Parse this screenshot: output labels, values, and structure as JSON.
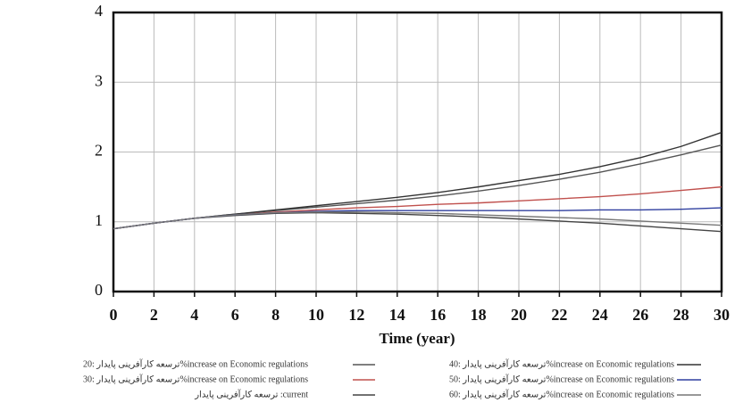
{
  "chart_data": {
    "type": "line",
    "x_label": "Time (year)",
    "x": [
      0,
      2,
      4,
      6,
      8,
      10,
      12,
      14,
      16,
      18,
      20,
      22,
      24,
      26,
      28,
      30
    ],
    "xlim": [
      0,
      30
    ],
    "xticks": [
      0,
      2,
      4,
      6,
      8,
      10,
      12,
      14,
      16,
      18,
      20,
      22,
      24,
      26,
      28,
      30
    ],
    "ylim": [
      0,
      4
    ],
    "yticks": [
      0,
      1,
      2,
      3,
      4
    ],
    "grid": true,
    "series": [
      {
        "name": "ترسعه کارآفرینی پایدار :20%increase on Economic regulations",
        "color": "#555555",
        "values": [
          0.9,
          0.98,
          1.05,
          1.11,
          1.16,
          1.21,
          1.26,
          1.31,
          1.37,
          1.44,
          1.52,
          1.61,
          1.71,
          1.83,
          1.96,
          2.1
        ]
      },
      {
        "name": "ترسعه کارآفرینی پایدار :30%increase on Economic regulations",
        "color": "#c0504d",
        "values": [
          0.9,
          0.98,
          1.05,
          1.1,
          1.14,
          1.17,
          1.2,
          1.22,
          1.25,
          1.27,
          1.3,
          1.33,
          1.36,
          1.4,
          1.45,
          1.5
        ]
      },
      {
        "name": "ترسعه کارآفرینی پایدار :current",
        "color": "#444444",
        "values": [
          0.9,
          0.98,
          1.05,
          1.09,
          1.12,
          1.13,
          1.12,
          1.11,
          1.09,
          1.07,
          1.04,
          1.01,
          0.98,
          0.94,
          0.9,
          0.86
        ]
      },
      {
        "name": "ترسعه کارآفرینی پایدار :40%increase on Economic regulations",
        "color": "#333333",
        "values": [
          0.9,
          0.98,
          1.05,
          1.11,
          1.17,
          1.23,
          1.29,
          1.35,
          1.42,
          1.5,
          1.59,
          1.68,
          1.79,
          1.92,
          2.08,
          2.28
        ]
      },
      {
        "name": "ترسعه کارآفرینی پایدار :50%increase on Economic regulations",
        "color": "#2f3f9f",
        "values": [
          0.9,
          0.98,
          1.05,
          1.1,
          1.13,
          1.15,
          1.16,
          1.16,
          1.16,
          1.16,
          1.16,
          1.16,
          1.17,
          1.17,
          1.18,
          1.2
        ]
      },
      {
        "name": "ترسعه کارآفرینی پایدار :60%increase on Economic regulations",
        "color": "#777777",
        "values": [
          0.9,
          0.98,
          1.05,
          1.1,
          1.13,
          1.14,
          1.14,
          1.13,
          1.12,
          1.1,
          1.08,
          1.06,
          1.04,
          1.01,
          0.98,
          0.95
        ]
      }
    ]
  }
}
